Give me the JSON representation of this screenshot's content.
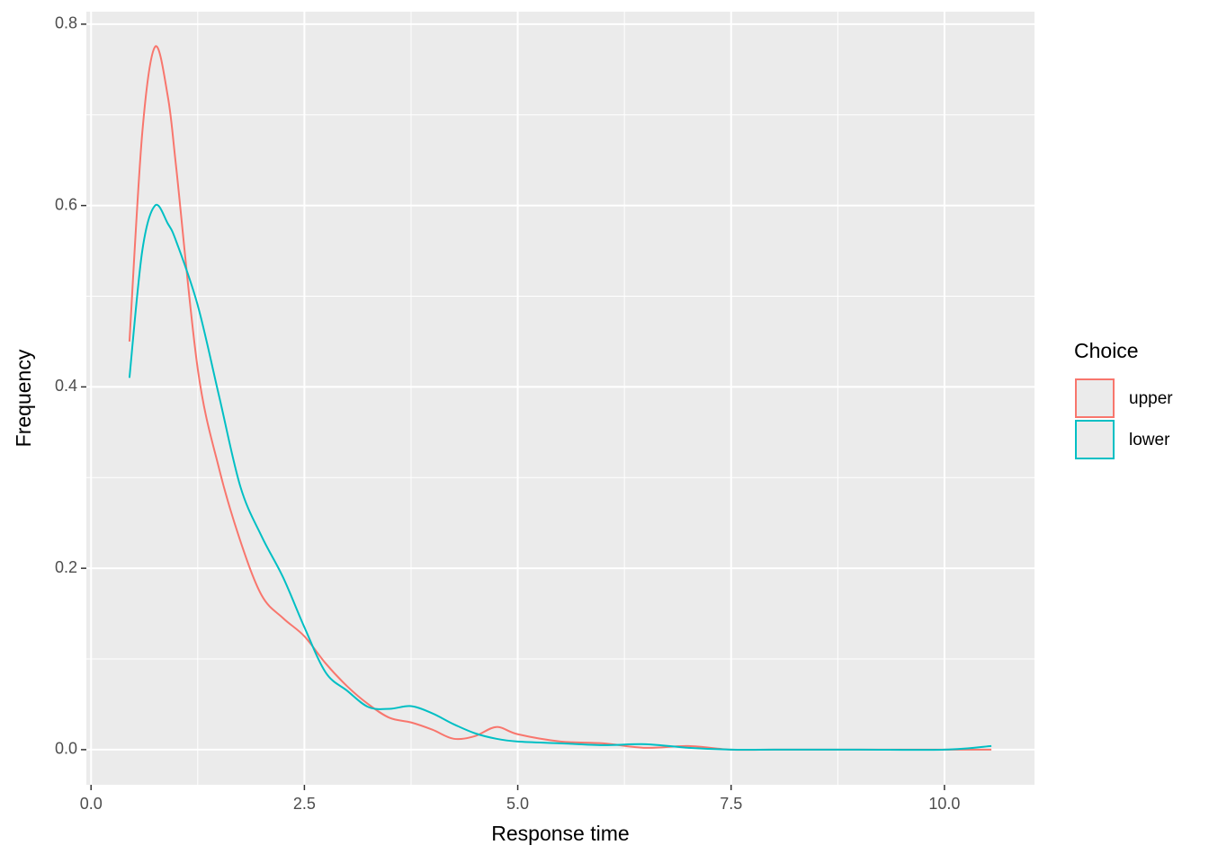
{
  "chart_data": {
    "type": "line",
    "x_label": "Response time",
    "y_label": "Frequency",
    "legend_title": "Choice",
    "x": [
      0.45,
      0.6,
      0.75,
      0.9,
      1.0,
      1.25,
      1.5,
      1.75,
      2.0,
      2.25,
      2.5,
      2.75,
      3.0,
      3.25,
      3.5,
      3.75,
      4.0,
      4.25,
      4.5,
      4.75,
      5.0,
      5.5,
      6.0,
      6.5,
      7.0,
      7.5,
      8.0,
      9.0,
      10.0,
      10.55
    ],
    "series": [
      {
        "name": "upper",
        "color": "#F8766D",
        "values": [
          0.45,
          0.68,
          0.775,
          0.72,
          0.64,
          0.42,
          0.31,
          0.23,
          0.17,
          0.145,
          0.125,
          0.095,
          0.07,
          0.05,
          0.035,
          0.03,
          0.022,
          0.012,
          0.015,
          0.025,
          0.017,
          0.009,
          0.007,
          0.002,
          0.004,
          0.0,
          0.0,
          0.0,
          0.0,
          0.0
        ]
      },
      {
        "name": "lower",
        "color": "#00BFC4",
        "values": [
          0.41,
          0.55,
          0.6,
          0.58,
          0.56,
          0.49,
          0.39,
          0.29,
          0.235,
          0.19,
          0.135,
          0.085,
          0.065,
          0.047,
          0.045,
          0.048,
          0.04,
          0.028,
          0.018,
          0.012,
          0.009,
          0.007,
          0.005,
          0.006,
          0.002,
          0.0,
          0.0,
          0.0,
          0.0,
          0.004
        ]
      }
    ],
    "xlim": [
      -0.055,
      11.055
    ],
    "xticks": [
      {
        "value": 0,
        "label": "0.0"
      },
      2.5,
      {
        "value": 5,
        "label": "5.0"
      },
      7.5,
      {
        "value": 10,
        "label": "10.0"
      }
    ],
    "ylim": [
      -0.03875,
      0.81375
    ],
    "yticks": [
      {
        "value": 0,
        "label": "0.0"
      },
      0.2,
      0.4,
      0.6,
      0.8
    ],
    "grid": true
  }
}
